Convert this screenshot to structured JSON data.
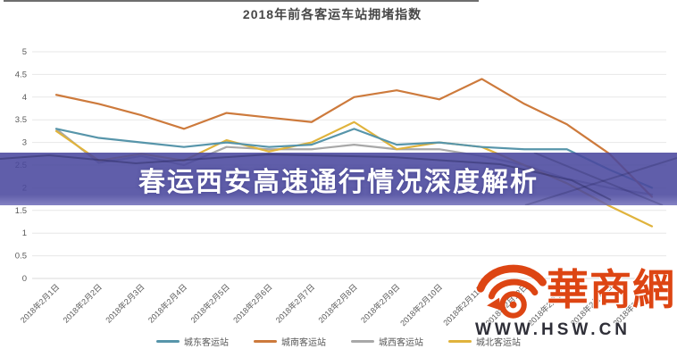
{
  "page": {
    "banner": {
      "text": "春运西安高速通行情况深度解析",
      "bg_color": "#4a489e"
    },
    "watermark": {
      "logo_text": "華商網",
      "url_text": "WWW.HSW.CN",
      "brand_color": "#dd4513"
    }
  },
  "chart_data": {
    "type": "line",
    "title": "2018年前各客运车站拥堵指数",
    "x": [
      "2018年2月1日",
      "2018年2月2日",
      "2018年2月3日",
      "2018年2月4日",
      "2018年2月5日",
      "2018年2月6日",
      "2018年2月7日",
      "2018年2月8日",
      "2018年2月9日",
      "2018年2月10日",
      "2018年2月11日",
      "2018年2月12日",
      "2018年2月13日",
      "2018年2月14日",
      "2018年2月15日"
    ],
    "series": [
      {
        "name": "城东客运站",
        "color": "#5795aa",
        "values": [
          3.3,
          3.1,
          3.0,
          2.9,
          3.0,
          2.9,
          2.95,
          3.3,
          2.95,
          3.0,
          2.9,
          2.85,
          2.85,
          2.4,
          2.0
        ]
      },
      {
        "name": "城南客运站",
        "color": "#cd7a3c",
        "values": [
          4.05,
          3.85,
          3.6,
          3.3,
          3.65,
          3.55,
          3.45,
          4.0,
          4.15,
          3.95,
          4.4,
          3.85,
          3.4,
          2.75,
          1.8
        ]
      },
      {
        "name": "城西客运站",
        "color": "#a8a8a8",
        "values": [
          3.3,
          2.55,
          2.7,
          2.5,
          2.9,
          2.85,
          2.85,
          2.95,
          2.85,
          2.85,
          2.7,
          2.5,
          2.2,
          2.0,
          1.85
        ]
      },
      {
        "name": "城北客运站",
        "color": "#e0b33c",
        "values": [
          3.25,
          2.6,
          2.75,
          2.6,
          3.05,
          2.8,
          3.0,
          3.45,
          2.85,
          3.0,
          2.9,
          2.5,
          2.1,
          1.6,
          1.15
        ]
      }
    ],
    "ylim": [
      0,
      5
    ],
    "ytick_step": 0.5,
    "grid": true,
    "legend_position": "bottom"
  }
}
